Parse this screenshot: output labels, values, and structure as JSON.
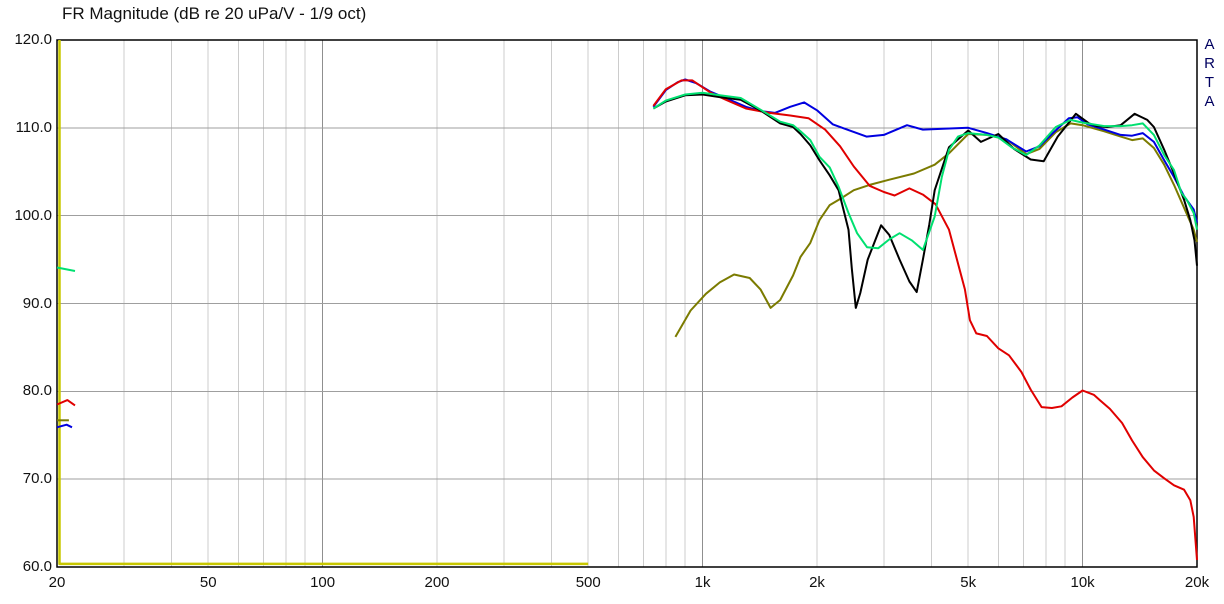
{
  "app": {
    "title": "FR Magnitude (dB re 20 uPa/V - 1/9 oct)",
    "watermark": "ARTA"
  },
  "chart_data": {
    "type": "line",
    "title": "FR Magnitude (dB re 20 uPa/V - 1/9 oct)",
    "x_axis": {
      "scale": "log",
      "min": 20,
      "max": 20000,
      "unit": "Hz",
      "ticks": [
        [
          20,
          "20"
        ],
        [
          50,
          "50"
        ],
        [
          100,
          "100"
        ],
        [
          200,
          "200"
        ],
        [
          500,
          "500"
        ],
        [
          1000,
          "1k"
        ],
        [
          2000,
          "2k"
        ],
        [
          5000,
          "5k"
        ],
        [
          10000,
          "10k"
        ],
        [
          20000,
          "20k"
        ]
      ],
      "minor_gridlines": [
        30,
        40,
        50,
        60,
        70,
        80,
        90,
        200,
        300,
        400,
        500,
        600,
        700,
        800,
        900,
        2000,
        3000,
        4000,
        5000,
        6000,
        7000,
        8000,
        9000
      ],
      "major_gridlines": [
        100,
        1000,
        10000
      ]
    },
    "y_axis": {
      "unit": "dB",
      "min": 60,
      "max": 120,
      "step": 10,
      "ticks": [
        [
          120,
          "120.0"
        ],
        [
          110,
          "110.0"
        ],
        [
          100,
          "100.0"
        ],
        [
          90,
          "90.0"
        ],
        [
          80,
          "80.0"
        ],
        [
          70,
          "70.0"
        ],
        [
          60,
          "60.0"
        ]
      ],
      "h_gridlines": [
        110,
        100,
        90,
        80,
        70
      ]
    },
    "colors": {
      "minor_grid": "#cccccc",
      "major_grid": "#8f8f8f",
      "h_grid": "#9f9f9f",
      "frame": "#000000",
      "blue": "#0000e0",
      "red": "#e00000",
      "green": "#00e070",
      "black": "#000000",
      "olive": "#7b7b00",
      "yellow": "#c8c800"
    },
    "legend": "none",
    "grid": true,
    "series": [
      {
        "name": "yellow-floor",
        "color": "#c8c800",
        "width": 2.5,
        "points": [
          [
            20.3,
            120
          ],
          [
            20.3,
            60.35
          ],
          [
            500,
            60.35
          ]
        ]
      },
      {
        "name": "olive-stub",
        "color": "#7b7b00",
        "width": 2,
        "points": [
          [
            20,
            76.7
          ],
          [
            21.5,
            76.7
          ]
        ]
      },
      {
        "name": "blue-stub",
        "color": "#0000e0",
        "width": 2,
        "points": [
          [
            20,
            75.9
          ],
          [
            21.2,
            76.2
          ],
          [
            21.9,
            75.9
          ]
        ]
      },
      {
        "name": "red-stub",
        "color": "#e00000",
        "width": 2,
        "points": [
          [
            20,
            78.5
          ],
          [
            21.3,
            79.0
          ],
          [
            22.3,
            78.4
          ]
        ]
      },
      {
        "name": "green-stub",
        "color": "#00e070",
        "width": 2,
        "points": [
          [
            20,
            94.1
          ],
          [
            22.3,
            93.7
          ]
        ]
      },
      {
        "name": "olive",
        "color": "#7b7b00",
        "width": 2,
        "points": [
          [
            848,
            86.2
          ],
          [
            930,
            89.2
          ],
          [
            1020,
            91.1
          ],
          [
            1110,
            92.4
          ],
          [
            1210,
            93.3
          ],
          [
            1330,
            92.9
          ],
          [
            1420,
            91.6
          ],
          [
            1510,
            89.5
          ],
          [
            1600,
            90.4
          ],
          [
            1730,
            93.2
          ],
          [
            1810,
            95.3
          ],
          [
            1920,
            96.9
          ],
          [
            2030,
            99.5
          ],
          [
            2160,
            101.2
          ],
          [
            2300,
            101.9
          ],
          [
            2500,
            102.9
          ],
          [
            2750,
            103.5
          ],
          [
            3100,
            104.1
          ],
          [
            3600,
            104.8
          ],
          [
            4080,
            105.8
          ],
          [
            4450,
            107.1
          ],
          [
            5000,
            109.3
          ],
          [
            5600,
            109.2
          ],
          [
            6300,
            108.7
          ],
          [
            7100,
            107.0
          ],
          [
            7700,
            107.6
          ],
          [
            8500,
            109.5
          ],
          [
            9300,
            110.5
          ],
          [
            10000,
            110.3
          ],
          [
            11400,
            109.6
          ],
          [
            12600,
            109.0
          ],
          [
            13500,
            108.6
          ],
          [
            14400,
            108.8
          ],
          [
            15400,
            107.7
          ],
          [
            16400,
            105.8
          ],
          [
            17400,
            103.5
          ],
          [
            18500,
            100.9
          ],
          [
            19600,
            98.4
          ],
          [
            20000,
            97.0
          ]
        ]
      },
      {
        "name": "blue",
        "color": "#0000e0",
        "width": 2,
        "points": [
          [
            742,
            112.4
          ],
          [
            800,
            114.3
          ],
          [
            860,
            115.2
          ],
          [
            900,
            115.5
          ],
          [
            960,
            115.1
          ],
          [
            1050,
            114.1
          ],
          [
            1150,
            113.4
          ],
          [
            1300,
            112.4
          ],
          [
            1420,
            111.9
          ],
          [
            1550,
            111.7
          ],
          [
            1700,
            112.4
          ],
          [
            1850,
            112.9
          ],
          [
            2000,
            112.0
          ],
          [
            2200,
            110.4
          ],
          [
            2400,
            109.8
          ],
          [
            2700,
            109.0
          ],
          [
            3000,
            109.2
          ],
          [
            3450,
            110.3
          ],
          [
            3800,
            109.8
          ],
          [
            4300,
            109.9
          ],
          [
            5000,
            110.0
          ],
          [
            5600,
            109.4
          ],
          [
            6300,
            108.7
          ],
          [
            7100,
            107.3
          ],
          [
            7700,
            107.9
          ],
          [
            8300,
            109.3
          ],
          [
            9200,
            111.1
          ],
          [
            9700,
            111.2
          ],
          [
            10300,
            110.4
          ],
          [
            11400,
            109.8
          ],
          [
            12600,
            109.2
          ],
          [
            13500,
            109.1
          ],
          [
            14400,
            109.4
          ],
          [
            15400,
            108.4
          ],
          [
            16400,
            106.3
          ],
          [
            17400,
            104.4
          ],
          [
            18500,
            102.2
          ],
          [
            19600,
            100.7
          ],
          [
            20000,
            99.2
          ]
        ]
      },
      {
        "name": "red",
        "color": "#e00000",
        "width": 2,
        "points": [
          [
            742,
            112.5
          ],
          [
            800,
            114.4
          ],
          [
            880,
            115.4
          ],
          [
            940,
            115.4
          ],
          [
            1050,
            114.0
          ],
          [
            1150,
            113.2
          ],
          [
            1300,
            112.2
          ],
          [
            1500,
            111.7
          ],
          [
            1700,
            111.4
          ],
          [
            1900,
            111.1
          ],
          [
            2100,
            109.8
          ],
          [
            2300,
            107.9
          ],
          [
            2500,
            105.6
          ],
          [
            2750,
            103.4
          ],
          [
            3000,
            102.7
          ],
          [
            3200,
            102.3
          ],
          [
            3500,
            103.1
          ],
          [
            3800,
            102.4
          ],
          [
            4100,
            101.3
          ],
          [
            4450,
            98.4
          ],
          [
            4900,
            91.6
          ],
          [
            5050,
            88.1
          ],
          [
            5250,
            86.6
          ],
          [
            5600,
            86.3
          ],
          [
            6000,
            84.9
          ],
          [
            6400,
            84.1
          ],
          [
            6900,
            82.2
          ],
          [
            7300,
            80.2
          ],
          [
            7800,
            78.2
          ],
          [
            8300,
            78.1
          ],
          [
            8800,
            78.3
          ],
          [
            9400,
            79.3
          ],
          [
            10000,
            80.1
          ],
          [
            10700,
            79.6
          ],
          [
            11100,
            79.0
          ],
          [
            11800,
            78.0
          ],
          [
            12700,
            76.4
          ],
          [
            13500,
            74.4
          ],
          [
            14400,
            72.5
          ],
          [
            15400,
            71.0
          ],
          [
            16400,
            70.1
          ],
          [
            17400,
            69.3
          ],
          [
            18500,
            68.8
          ],
          [
            19200,
            67.6
          ],
          [
            19600,
            65.7
          ],
          [
            20000,
            60.8
          ]
        ]
      },
      {
        "name": "black",
        "color": "#000000",
        "width": 2,
        "points": [
          [
            742,
            112.2
          ],
          [
            800,
            113.0
          ],
          [
            900,
            113.7
          ],
          [
            1000,
            113.8
          ],
          [
            1110,
            113.5
          ],
          [
            1260,
            113.2
          ],
          [
            1430,
            111.9
          ],
          [
            1600,
            110.5
          ],
          [
            1730,
            110.1
          ],
          [
            1810,
            109.3
          ],
          [
            1920,
            108.0
          ],
          [
            2030,
            106.3
          ],
          [
            2160,
            104.6
          ],
          [
            2280,
            102.9
          ],
          [
            2420,
            98.4
          ],
          [
            2470,
            94.0
          ],
          [
            2530,
            89.5
          ],
          [
            2600,
            91.2
          ],
          [
            2720,
            95.0
          ],
          [
            2950,
            98.9
          ],
          [
            3100,
            97.8
          ],
          [
            3300,
            95.0
          ],
          [
            3500,
            92.5
          ],
          [
            3660,
            91.3
          ],
          [
            3800,
            95.0
          ],
          [
            3950,
            99.0
          ],
          [
            4080,
            102.9
          ],
          [
            4450,
            107.8
          ],
          [
            5000,
            109.7
          ],
          [
            5400,
            108.4
          ],
          [
            6000,
            109.3
          ],
          [
            6600,
            107.6
          ],
          [
            7300,
            106.4
          ],
          [
            7900,
            106.2
          ],
          [
            8600,
            109.0
          ],
          [
            9600,
            111.6
          ],
          [
            10400,
            110.5
          ],
          [
            10900,
            110.2
          ],
          [
            11600,
            110.1
          ],
          [
            12600,
            110.3
          ],
          [
            13700,
            111.6
          ],
          [
            14800,
            110.9
          ],
          [
            15400,
            110.1
          ],
          [
            16400,
            107.5
          ],
          [
            17400,
            104.8
          ],
          [
            18500,
            101.8
          ],
          [
            19200,
            99.5
          ],
          [
            19700,
            97.2
          ],
          [
            20000,
            94.3
          ]
        ]
      },
      {
        "name": "green",
        "color": "#00e070",
        "width": 2,
        "points": [
          [
            742,
            112.2
          ],
          [
            800,
            113.1
          ],
          [
            900,
            113.8
          ],
          [
            1000,
            114.0
          ],
          [
            1110,
            113.7
          ],
          [
            1260,
            113.4
          ],
          [
            1430,
            112.0
          ],
          [
            1600,
            110.7
          ],
          [
            1730,
            110.3
          ],
          [
            1810,
            109.6
          ],
          [
            1920,
            108.6
          ],
          [
            2030,
            106.7
          ],
          [
            2160,
            105.5
          ],
          [
            2280,
            103.3
          ],
          [
            2420,
            100.3
          ],
          [
            2550,
            98.0
          ],
          [
            2710,
            96.4
          ],
          [
            2900,
            96.3
          ],
          [
            3100,
            97.3
          ],
          [
            3300,
            98.0
          ],
          [
            3550,
            97.2
          ],
          [
            3800,
            96.1
          ],
          [
            4080,
            99.9
          ],
          [
            4260,
            104.4
          ],
          [
            4450,
            107.5
          ],
          [
            4700,
            109.0
          ],
          [
            5000,
            109.4
          ],
          [
            5600,
            109.2
          ],
          [
            6000,
            108.9
          ],
          [
            6500,
            107.8
          ],
          [
            7100,
            106.9
          ],
          [
            7700,
            108.0
          ],
          [
            8500,
            110.1
          ],
          [
            9300,
            110.9
          ],
          [
            10000,
            110.6
          ],
          [
            11400,
            110.2
          ],
          [
            12600,
            110.2
          ],
          [
            13500,
            110.3
          ],
          [
            14400,
            110.5
          ],
          [
            15400,
            109.2
          ],
          [
            16400,
            106.9
          ],
          [
            17400,
            105.2
          ],
          [
            18200,
            102.6
          ],
          [
            18800,
            101.8
          ],
          [
            19600,
            100.3
          ],
          [
            20000,
            98.4
          ]
        ]
      }
    ]
  }
}
